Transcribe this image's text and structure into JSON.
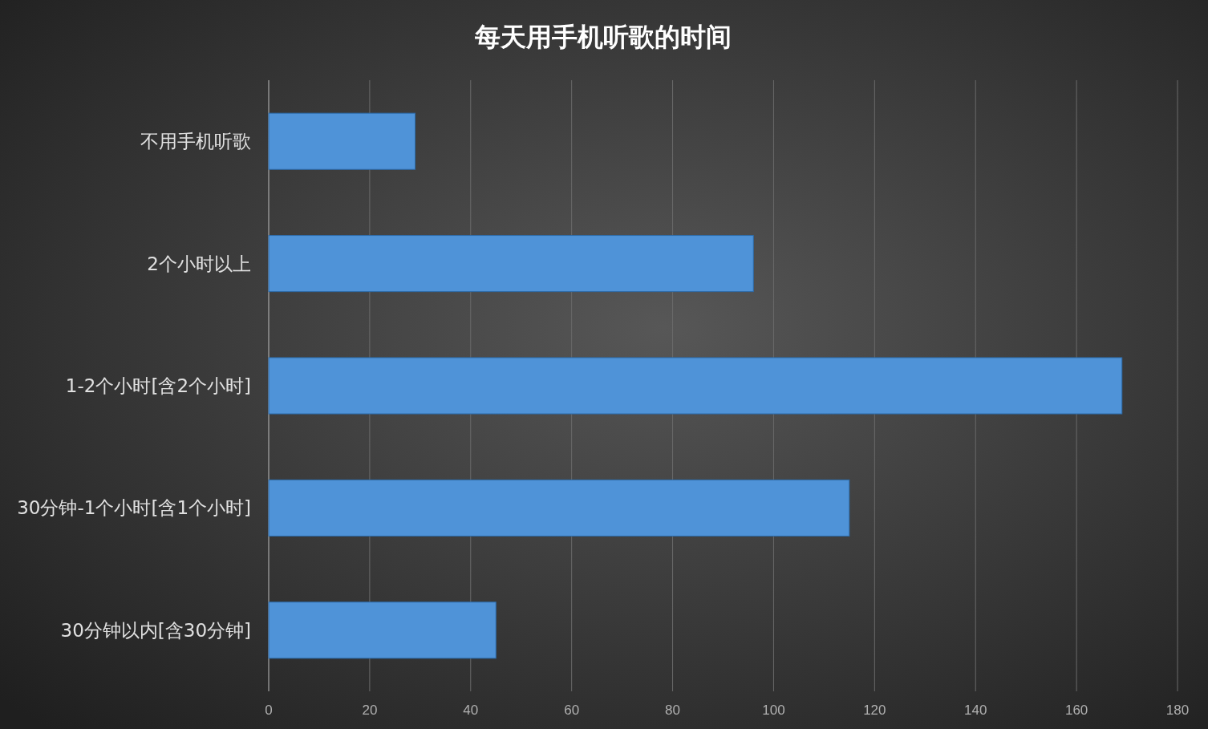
{
  "chart_data": {
    "type": "bar",
    "orientation": "horizontal",
    "title": "每天用手机听歌的时间",
    "categories": [
      "不用手机听歌",
      "2个小时以上",
      "1-2个小时[含2个小时]",
      "30分钟-1个小时[含1个小时]",
      "30分钟以内[含30分钟]"
    ],
    "values": [
      29,
      96,
      169,
      115,
      45
    ],
    "color": "#4f93d8",
    "xlim": [
      0,
      180
    ],
    "xticks": [
      0,
      20,
      40,
      60,
      80,
      100,
      120,
      140,
      160,
      180
    ],
    "grid": "x"
  }
}
